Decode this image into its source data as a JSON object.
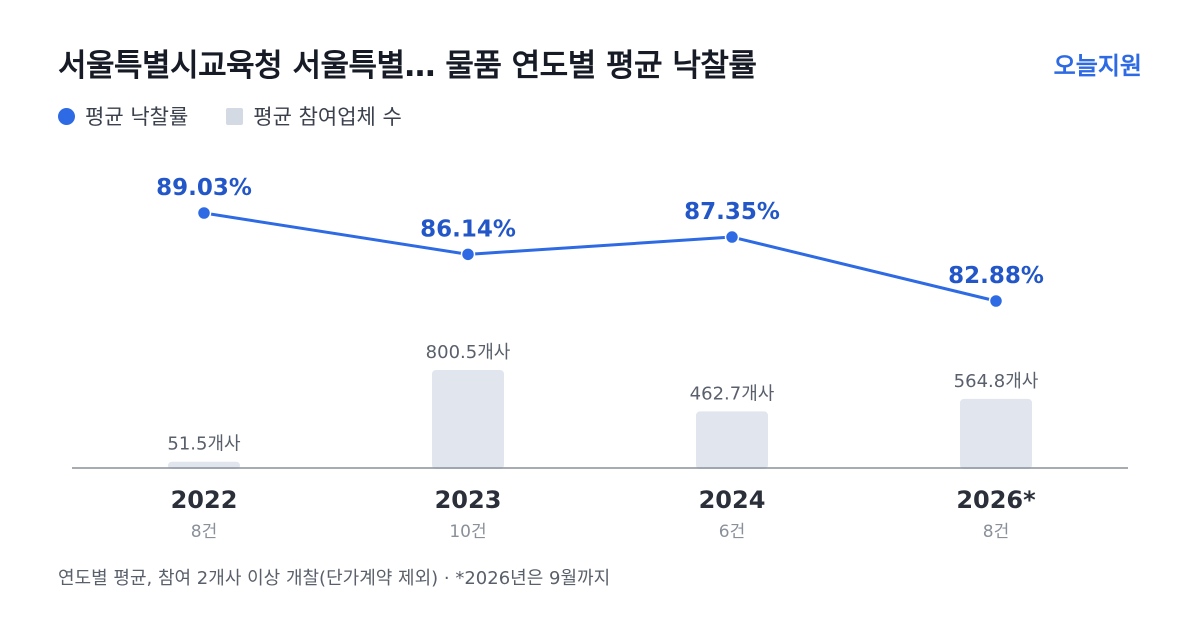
{
  "header": {
    "title": "서울특별시교육청 서울특별… 물품 연도별 평균 낙찰률",
    "brand": "오늘지원"
  },
  "legend": {
    "line_label": "평균 낙찰률",
    "bar_label": "평균 참여업체 수"
  },
  "colors": {
    "line": "#2d6ae3",
    "bar": "#e1e6ee",
    "axis": "#8a909a"
  },
  "chart_data": {
    "type": "bar+line",
    "categories": [
      "2022",
      "2023",
      "2024",
      "2026*"
    ],
    "counts": [
      "8건",
      "10건",
      "6건",
      "8건"
    ],
    "series": [
      {
        "name": "평균 낙찰률",
        "type": "line",
        "values": [
          89.03,
          86.14,
          87.35,
          82.88
        ],
        "labels": [
          "89.03%",
          "86.14%",
          "87.35%",
          "82.88%"
        ]
      },
      {
        "name": "평균 참여업체 수",
        "type": "bar",
        "values": [
          51.5,
          800.5,
          462.7,
          564.8
        ],
        "labels": [
          "51.5개사",
          "800.5개사",
          "462.7개사",
          "564.8개사"
        ]
      }
    ]
  },
  "footnote": "연도별 평균, 참여 2개사 이상 개찰(단가계약 제외) · *2026년은 9월까지"
}
